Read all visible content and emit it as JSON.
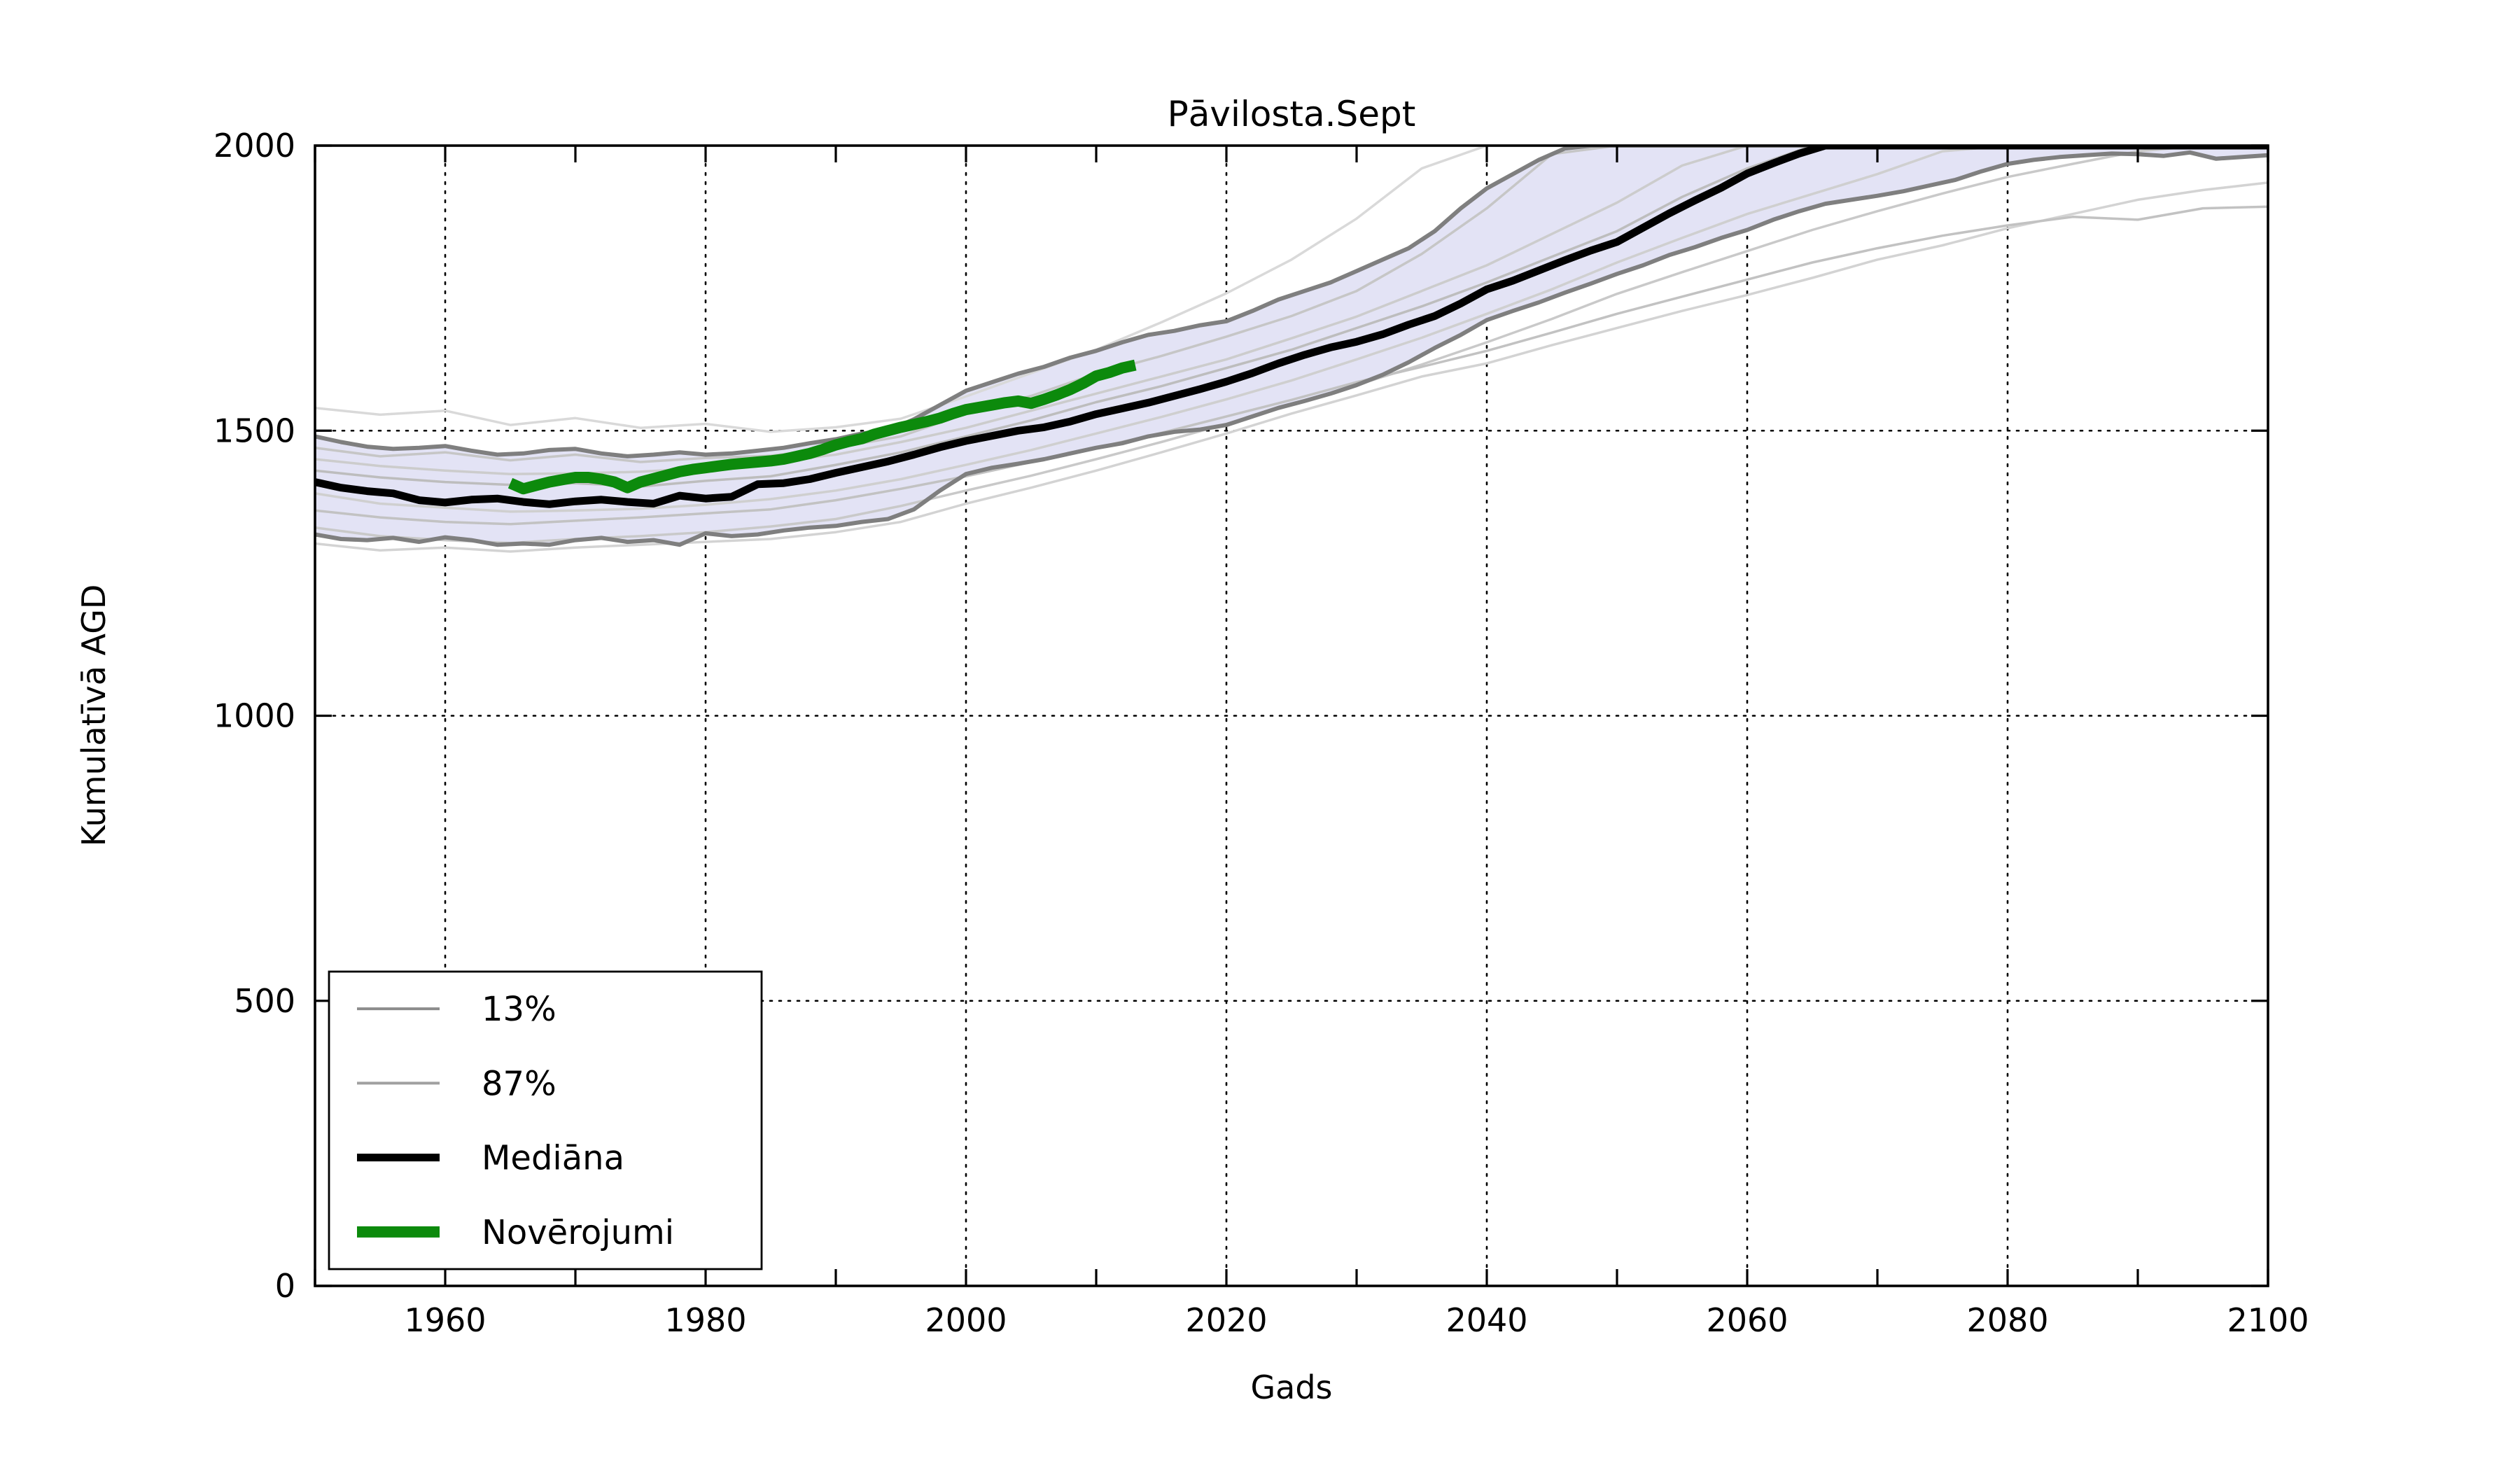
{
  "window": {
    "kind": "matplotlib-figure",
    "background": "#ffffff"
  },
  "colors": {
    "median": "#000000",
    "observations": "#0c8a0c",
    "band_fill": "#e3e3f5",
    "band_edge": "#7f7f7f",
    "member_light": "#cfcfcf",
    "grid": "#000000",
    "text": "#000000"
  },
  "legend": {
    "position": "lower-left",
    "entries": [
      {
        "label": "13%",
        "color": "#8c8c8c",
        "line_width": 4
      },
      {
        "label": "87%",
        "color": "#a0a0a0",
        "line_width": 4
      },
      {
        "label": "Mediāna",
        "color": "#000000",
        "line_width": 11
      },
      {
        "label": "Novērojumi",
        "color": "#0c8a0c",
        "line_width": 16
      }
    ]
  },
  "chart_data": {
    "type": "line",
    "title": "Pāvilosta.Sept",
    "xlabel": "Gads",
    "ylabel": "Kumulatīvā AGD",
    "xlim": [
      1950,
      2100
    ],
    "ylim": [
      0,
      2000
    ],
    "xticks_labeled": [
      1960,
      1980,
      2000,
      2020,
      2040,
      2060,
      2080,
      2100
    ],
    "xtick_minor_step": 10,
    "yticks": [
      0,
      500,
      1000,
      1500,
      2000
    ],
    "grid": "dotted-both-axes",
    "legend_note": "13%/87% are the quantile band edges; shaded band between them",
    "series": [
      {
        "id": "member1",
        "label": null,
        "role": "member",
        "color": "#d9d9d9",
        "width": 3.5,
        "z": 2,
        "x_start": 1950,
        "x_step": 5,
        "values": [
          1540,
          1528,
          1535,
          1510,
          1522,
          1505,
          1512,
          1498,
          1506,
          1521,
          1560,
          1601,
          1642,
          1690,
          1741,
          1800,
          1872,
          1960,
          2000,
          2000,
          2000,
          2000,
          2000,
          2000,
          2000,
          2000,
          2000,
          2000,
          2000,
          2000,
          2000
        ]
      },
      {
        "id": "member2",
        "label": null,
        "role": "member",
        "color": "#c6c6c6",
        "width": 3.5,
        "z": 2,
        "x_start": 1950,
        "x_step": 5,
        "values": [
          1470,
          1455,
          1462,
          1448,
          1458,
          1445,
          1452,
          1456,
          1470,
          1490,
          1530,
          1561,
          1600,
          1631,
          1665,
          1701,
          1745,
          1810,
          1890,
          1985,
          2000,
          2000,
          2000,
          2000,
          2000,
          2000,
          2000,
          2000,
          2000,
          2000,
          2000
        ]
      },
      {
        "id": "member3",
        "label": null,
        "role": "member",
        "color": "#bdbdbd",
        "width": 3.5,
        "z": 2,
        "x_start": 1950,
        "x_step": 5,
        "values": [
          1430,
          1418,
          1410,
          1405,
          1408,
          1402,
          1412,
          1420,
          1440,
          1462,
          1490,
          1518,
          1550,
          1578,
          1610,
          1642,
          1680,
          1718,
          1760,
          1805,
          1850,
          1910,
          1960,
          2000,
          2000,
          2000,
          2000,
          2000,
          2000,
          2000,
          2000
        ]
      },
      {
        "id": "member4",
        "label": null,
        "role": "member",
        "color": "#cfcfcf",
        "width": 3.5,
        "z": 2,
        "x_start": 1950,
        "x_step": 5,
        "values": [
          1390,
          1372,
          1365,
          1358,
          1360,
          1363,
          1370,
          1380,
          1395,
          1415,
          1440,
          1466,
          1495,
          1524,
          1555,
          1588,
          1625,
          1663,
          1705,
          1748,
          1795,
          1838,
          1880,
          1915,
          1950,
          1990,
          2000,
          2000,
          2000,
          2000,
          2000
        ]
      },
      {
        "id": "member5",
        "label": null,
        "role": "member",
        "color": "#c9c9c9",
        "width": 3.5,
        "z": 2,
        "x_start": 1950,
        "x_step": 5,
        "values": [
          1330,
          1315,
          1308,
          1303,
          1310,
          1315,
          1322,
          1332,
          1345,
          1368,
          1395,
          1421,
          1450,
          1480,
          1512,
          1545,
          1580,
          1616,
          1655,
          1696,
          1740,
          1778,
          1815,
          1852,
          1885,
          1916,
          1945,
          1968,
          1990,
          2000,
          2000
        ]
      },
      {
        "id": "member6",
        "label": null,
        "role": "member",
        "color": "#d3d3d3",
        "width": 3.5,
        "z": 2,
        "x_start": 1950,
        "x_step": 5,
        "values": [
          1302,
          1290,
          1295,
          1288,
          1295,
          1300,
          1305,
          1310,
          1322,
          1340,
          1372,
          1400,
          1430,
          1462,
          1495,
          1530,
          1562,
          1595,
          1618,
          1650,
          1680,
          1710,
          1738,
          1768,
          1800,
          1825,
          1855,
          1880,
          1905,
          1922,
          1935
        ]
      },
      {
        "id": "member7",
        "label": null,
        "role": "member",
        "color": "#c2c2c2",
        "width": 3.5,
        "z": 2,
        "x_start": 1950,
        "x_step": 5,
        "values": [
          1360,
          1348,
          1340,
          1336,
          1342,
          1348,
          1355,
          1362,
          1378,
          1398,
          1420,
          1445,
          1470,
          1496,
          1525,
          1554,
          1585,
          1612,
          1640,
          1672,
          1705,
          1735,
          1765,
          1795,
          1820,
          1842,
          1860,
          1875,
          1870,
          1890,
          1893
        ]
      },
      {
        "id": "member8",
        "label": null,
        "role": "member",
        "color": "#cccccc",
        "width": 3.5,
        "z": 2,
        "x_start": 1950,
        "x_step": 5,
        "values": [
          1450,
          1438,
          1430,
          1424,
          1425,
          1428,
          1435,
          1445,
          1458,
          1480,
          1505,
          1535,
          1565,
          1595,
          1625,
          1662,
          1700,
          1745,
          1790,
          1845,
          1900,
          1965,
          2000,
          2000,
          2000,
          2000,
          2000,
          2000,
          2000,
          2000,
          2000
        ]
      },
      {
        "id": "p87",
        "label": "87%",
        "role": "band_upper",
        "color": "#7f7f7f",
        "width": 6,
        "z": 3,
        "x_start": 1950,
        "x_step": 2,
        "values": [
          1490,
          1480,
          1472,
          1468,
          1470,
          1473,
          1465,
          1458,
          1460,
          1466,
          1468,
          1460,
          1455,
          1458,
          1462,
          1458,
          1460,
          1465,
          1470,
          1478,
          1485,
          1495,
          1500,
          1520,
          1545,
          1570,
          1585,
          1600,
          1612,
          1628,
          1640,
          1655,
          1668,
          1675,
          1685,
          1692,
          1710,
          1730,
          1745,
          1760,
          1780,
          1800,
          1820,
          1850,
          1890,
          1925,
          1950,
          1975,
          1995,
          2000,
          2000,
          2000,
          2000,
          2000,
          2000,
          2000,
          2000,
          2000,
          2000,
          2000,
          2000,
          2000,
          2000,
          2000,
          2000,
          2000,
          2000,
          2000,
          2000,
          2000,
          2000,
          2000,
          2000,
          2000,
          2000,
          2000
        ]
      },
      {
        "id": "p13",
        "label": "13%",
        "role": "band_lower",
        "color": "#7f7f7f",
        "width": 6,
        "z": 3,
        "x_start": 1950,
        "x_step": 2,
        "values": [
          1318,
          1310,
          1308,
          1312,
          1305,
          1313,
          1308,
          1300,
          1302,
          1300,
          1308,
          1312,
          1305,
          1308,
          1300,
          1320,
          1315,
          1318,
          1325,
          1330,
          1333,
          1340,
          1345,
          1362,
          1395,
          1424,
          1435,
          1442,
          1450,
          1460,
          1470,
          1478,
          1490,
          1498,
          1502,
          1510,
          1525,
          1540,
          1552,
          1565,
          1580,
          1598,
          1620,
          1645,
          1668,
          1694,
          1710,
          1725,
          1742,
          1758,
          1775,
          1790,
          1808,
          1822,
          1838,
          1852,
          1870,
          1885,
          1898,
          1905,
          1912,
          1920,
          1930,
          1940,
          1955,
          1968,
          1975,
          1980,
          1983,
          1986,
          1985,
          1982,
          1988,
          1977,
          1980,
          1983
        ]
      },
      {
        "id": "median",
        "label": "Mediāna",
        "role": "median",
        "color": "#000000",
        "width": 11,
        "z": 4,
        "x_start": 1950,
        "x_step": 2,
        "values": [
          1410,
          1400,
          1394,
          1390,
          1378,
          1374,
          1379,
          1381,
          1375,
          1371,
          1376,
          1379,
          1375,
          1372,
          1386,
          1381,
          1384,
          1406,
          1408,
          1415,
          1426,
          1436,
          1446,
          1458,
          1471,
          1482,
          1491,
          1500,
          1506,
          1516,
          1529,
          1539,
          1549,
          1561,
          1573,
          1586,
          1601,
          1618,
          1633,
          1646,
          1656,
          1669,
          1686,
          1701,
          1723,
          1748,
          1763,
          1781,
          1799,
          1816,
          1831,
          1856,
          1881,
          1904,
          1926,
          1951,
          1969,
          1986,
          2000,
          2000,
          2000,
          2000,
          2000,
          2000,
          2000,
          2000,
          2000,
          2000,
          2000,
          2000,
          2000,
          2000,
          2000,
          2000,
          2000,
          2000
        ]
      },
      {
        "id": "observations",
        "label": "Novērojumi",
        "role": "observations",
        "color": "#0c8a0c",
        "width": 16,
        "z": 5,
        "x_start": 1965,
        "x_step": 1,
        "values": [
          1408,
          1398,
          1404,
          1410,
          1414,
          1418,
          1418,
          1415,
          1410,
          1400,
          1410,
          1416,
          1422,
          1428,
          1432,
          1435,
          1438,
          1441,
          1443,
          1445,
          1447,
          1450,
          1455,
          1460,
          1467,
          1475,
          1481,
          1486,
          1494,
          1500,
          1506,
          1511,
          1516,
          1522,
          1530,
          1537,
          1541,
          1545,
          1549,
          1552,
          1548,
          1555,
          1563,
          1572,
          1583,
          1596,
          1602,
          1610,
          1615
        ]
      }
    ]
  }
}
